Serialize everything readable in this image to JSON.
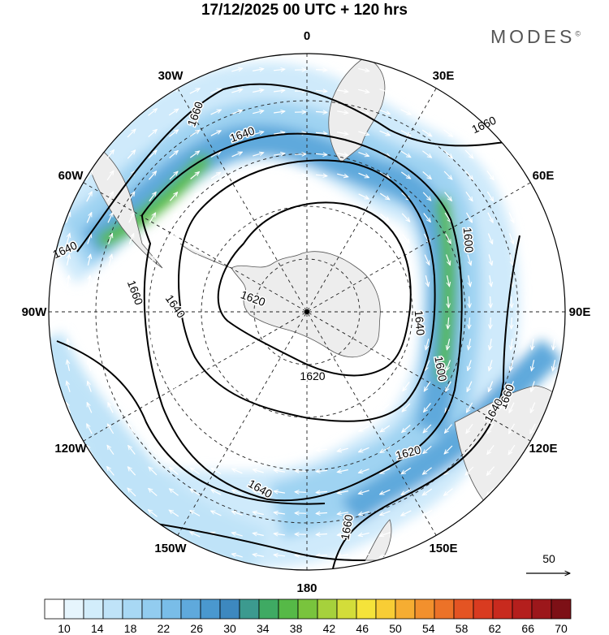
{
  "title": "17/12/2025  00 UTC  + 120 hrs",
  "brand": "MODES",
  "brand_mark": "©",
  "longitude_labels": [
    {
      "text": "0",
      "lon": 0
    },
    {
      "text": "30E",
      "lon": 30
    },
    {
      "text": "60E",
      "lon": 60
    },
    {
      "text": "90E",
      "lon": 90
    },
    {
      "text": "120E",
      "lon": 120
    },
    {
      "text": "150E",
      "lon": 150
    },
    {
      "text": "180",
      "lon": 180
    },
    {
      "text": "150W",
      "lon": -150
    },
    {
      "text": "120W",
      "lon": -120
    },
    {
      "text": "90W",
      "lon": -90
    },
    {
      "text": "60W",
      "lon": -60
    },
    {
      "text": "30W",
      "lon": -30
    }
  ],
  "contour_labels": [
    "1660",
    "1640",
    "1660",
    "1640",
    "1660",
    "1640",
    "1620",
    "1600",
    "1640",
    "1600",
    "1620",
    "1620",
    "1640",
    "1660",
    "1640",
    "1660"
  ],
  "vector_reference": {
    "value": "50"
  },
  "colorbar": {
    "ticks": [
      "10",
      "14",
      "18",
      "22",
      "26",
      "30",
      "34",
      "38",
      "42",
      "46",
      "50",
      "54",
      "58",
      "62",
      "66",
      "70"
    ],
    "colors": [
      "#ffffff",
      "#e6f5fd",
      "#d2edfb",
      "#bfe3f8",
      "#a8d8f4",
      "#92ccef",
      "#79bde8",
      "#5fa9dc",
      "#4a98cf",
      "#3d88bf",
      "#3c9a8f",
      "#3faa63",
      "#56b947",
      "#79c43d",
      "#a6d13c",
      "#d3dd3a",
      "#f5e33a",
      "#f8cd35",
      "#f6ad32",
      "#f2902d",
      "#ec7228",
      "#e45423",
      "#d93b20",
      "#c82a1e",
      "#b41f1d",
      "#9c171b",
      "#7d1016"
    ]
  }
}
